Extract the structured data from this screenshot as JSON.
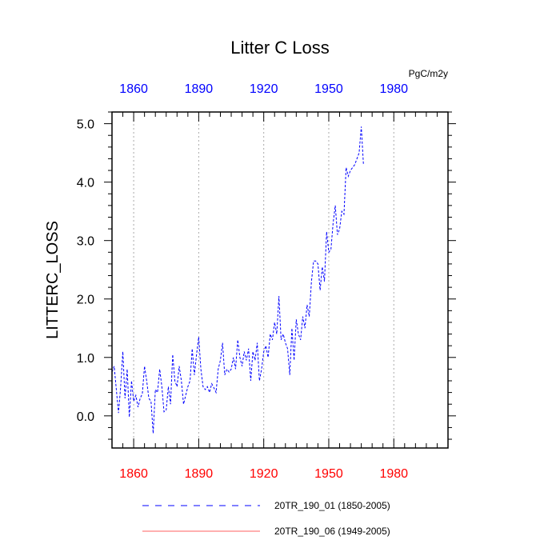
{
  "chart_data": {
    "type": "line",
    "title": "Litter C Loss",
    "units": "PgC/m2y",
    "ylabel": "LITTERC_LOSS",
    "xlabel": "",
    "xlim": [
      1850,
      2005
    ],
    "ylim": [
      -0.55,
      5.2
    ],
    "x_ticks": [
      1860,
      1890,
      1920,
      1950,
      1980
    ],
    "x_tick_labels_top": [
      "1860",
      "1890",
      "1920",
      "1950",
      "1980"
    ],
    "x_tick_labels_bottom": [
      "1860",
      "1890",
      "1920",
      "1950",
      "1980"
    ],
    "y_ticks": [
      0.0,
      1.0,
      2.0,
      3.0,
      4.0,
      5.0
    ],
    "y_tick_labels": [
      "0.0",
      "1.0",
      "2.0",
      "3.0",
      "4.0",
      "5.0"
    ],
    "grid": "vertical dotted at x ticks",
    "legend_placement": "below plot",
    "series": [
      {
        "name": "20TR_190_01 (1850-2005)",
        "color": "#0000ff",
        "style": "dashed",
        "x_start": 1850,
        "x_step": 1,
        "values": [
          0.75,
          0.85,
          0.45,
          0.05,
          0.5,
          1.1,
          0.3,
          0.8,
          -0.02,
          0.6,
          0.25,
          0.35,
          0.15,
          0.3,
          0.38,
          0.85,
          0.6,
          0.3,
          0.25,
          -0.3,
          0.45,
          0.4,
          0.8,
          0.5,
          0.07,
          0.1,
          0.5,
          0.2,
          1.05,
          0.6,
          0.5,
          0.85,
          0.6,
          0.2,
          0.35,
          0.5,
          0.6,
          1.15,
          0.7,
          1.05,
          1.35,
          0.8,
          0.5,
          0.45,
          0.5,
          0.4,
          0.55,
          0.48,
          0.4,
          0.8,
          0.95,
          1.25,
          0.7,
          0.8,
          0.75,
          0.8,
          1.0,
          0.8,
          1.3,
          1.0,
          0.85,
          1.1,
          0.95,
          1.15,
          0.6,
          1.1,
          0.95,
          1.25,
          0.6,
          0.8,
          1.1,
          1.2,
          1.0,
          1.4,
          1.3,
          1.6,
          1.4,
          2.05,
          1.3,
          1.4,
          1.25,
          1.15,
          0.7,
          1.5,
          0.95,
          1.65,
          1.4,
          1.3,
          1.7,
          1.5,
          1.9,
          1.7,
          2.3,
          2.65,
          2.65,
          2.6,
          2.15,
          2.55,
          2.3,
          3.15,
          2.8,
          2.85,
          3.3,
          3.6,
          3.1,
          3.2,
          3.5,
          3.45,
          4.25,
          4.1,
          4.2,
          4.25,
          4.3,
          4.4,
          4.5,
          4.95,
          4.3
        ]
      },
      {
        "name": "20TR_190_06 (1949-2005)",
        "color": "#ff6060",
        "style": "solid",
        "values": []
      }
    ]
  }
}
